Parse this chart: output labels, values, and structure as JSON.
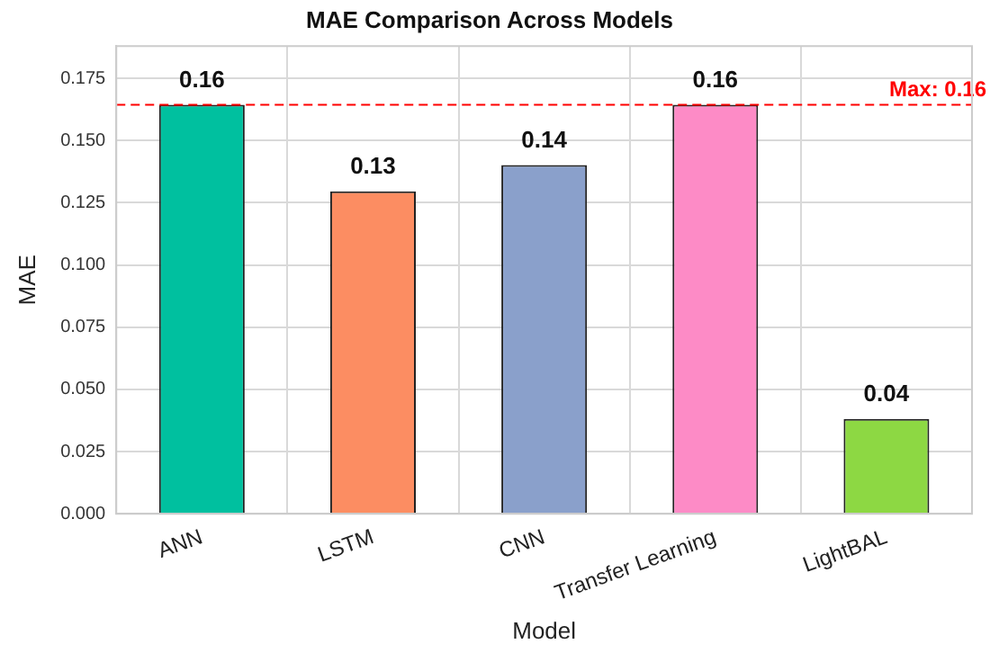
{
  "chart_data": {
    "type": "bar",
    "title": "MAE Comparison Across Models",
    "xlabel": "Model",
    "ylabel": "MAE",
    "categories": [
      "ANN",
      "LSTM",
      "CNN",
      "Transfer Learning",
      "LightBAL"
    ],
    "values": [
      0.1644,
      0.1296,
      0.1402,
      0.1644,
      0.0381
    ],
    "colors": [
      "#00c09f",
      "#fc8d62",
      "#8aa0cb",
      "#fd8bc6",
      "#8dd843"
    ],
    "value_labels": [
      "0.16",
      "0.13",
      "0.14",
      "0.16",
      "0.04"
    ],
    "ylim": [
      0,
      0.188
    ],
    "yticks": [
      {
        "value": 0,
        "label": "0.000"
      },
      {
        "value": 0.025,
        "label": "0.025"
      },
      {
        "value": 0.05,
        "label": "0.050"
      },
      {
        "value": 0.075,
        "label": "0.075"
      },
      {
        "value": 0.1,
        "label": "0.100"
      },
      {
        "value": 0.125,
        "label": "0.125"
      },
      {
        "value": 0.15,
        "label": "0.150"
      },
      {
        "value": 0.175,
        "label": "0.175"
      }
    ],
    "ref_lines": [
      {
        "axis": "y",
        "value": 0.1644,
        "label": "Max: 0.16",
        "color": "#ff0000",
        "line_style": "dashed"
      }
    ],
    "grid": true
  }
}
